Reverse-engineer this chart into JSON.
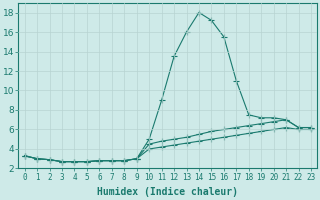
{
  "xlabel": "Humidex (Indice chaleur)",
  "x": [
    0,
    1,
    2,
    3,
    4,
    5,
    6,
    7,
    8,
    9,
    10,
    11,
    12,
    13,
    14,
    15,
    16,
    17,
    18,
    19,
    20,
    21,
    22,
    23
  ],
  "line1": [
    3.3,
    3.0,
    2.9,
    2.7,
    2.7,
    2.7,
    2.8,
    2.8,
    2.8,
    3.0,
    5.0,
    9.0,
    13.5,
    16.0,
    18.0,
    17.2,
    15.5,
    11.0,
    7.5,
    7.2,
    7.2,
    7.0,
    6.2,
    6.2
  ],
  "line2": [
    3.3,
    3.0,
    2.9,
    2.7,
    2.7,
    2.7,
    2.8,
    2.8,
    2.8,
    3.0,
    4.5,
    4.8,
    5.0,
    5.2,
    5.5,
    5.8,
    6.0,
    6.2,
    6.4,
    6.6,
    6.8,
    7.0,
    6.2,
    6.2
  ],
  "line3": [
    3.3,
    3.0,
    2.9,
    2.7,
    2.7,
    2.7,
    2.8,
    2.8,
    2.8,
    3.0,
    4.0,
    4.2,
    4.4,
    4.6,
    4.8,
    5.0,
    5.2,
    5.4,
    5.6,
    5.8,
    6.0,
    6.2,
    6.0,
    6.0
  ],
  "line_color": "#1a7a6e",
  "bg_color": "#ceeae8",
  "grid_color": "#b8d4d2",
  "ylim": [
    2,
    19
  ],
  "yticks": [
    2,
    4,
    6,
    8,
    10,
    12,
    14,
    16,
    18
  ],
  "xlim": [
    -0.5,
    23.5
  ],
  "xlabel_fontsize": 7,
  "tick_fontsize": 5.5,
  "ytick_fontsize": 6.5
}
